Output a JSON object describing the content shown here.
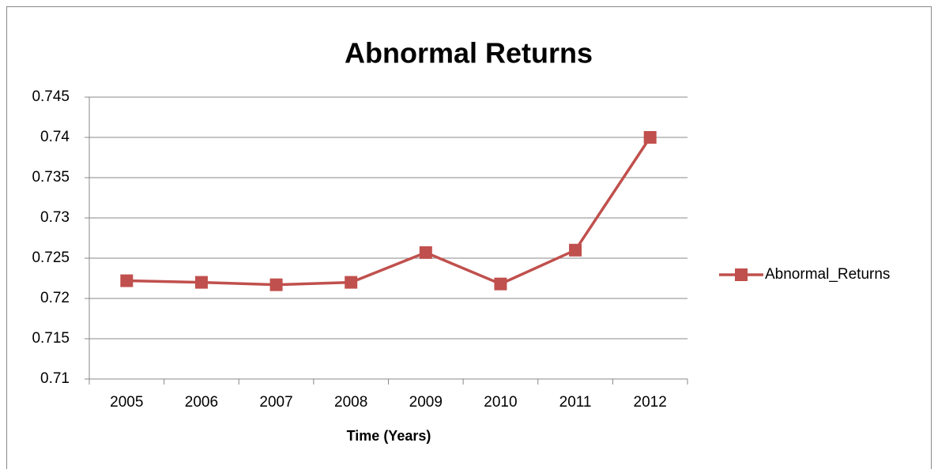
{
  "chart_data": {
    "type": "line",
    "title": "Abnormal Returns",
    "xlabel": "Time (Years)",
    "categories": [
      "2005",
      "2006",
      "2007",
      "2008",
      "2009",
      "2010",
      "2011",
      "2012"
    ],
    "series": [
      {
        "name": "Abnormal_Returns",
        "color": "#c0504d",
        "values": [
          0.7222,
          0.722,
          0.7217,
          0.722,
          0.7257,
          0.7218,
          0.726,
          0.74
        ]
      }
    ],
    "ylim": [
      0.71,
      0.745
    ],
    "yticks": [
      0.71,
      0.715,
      0.72,
      0.725,
      0.73,
      0.735,
      0.74,
      0.745
    ],
    "grid": true,
    "legend": "right"
  }
}
